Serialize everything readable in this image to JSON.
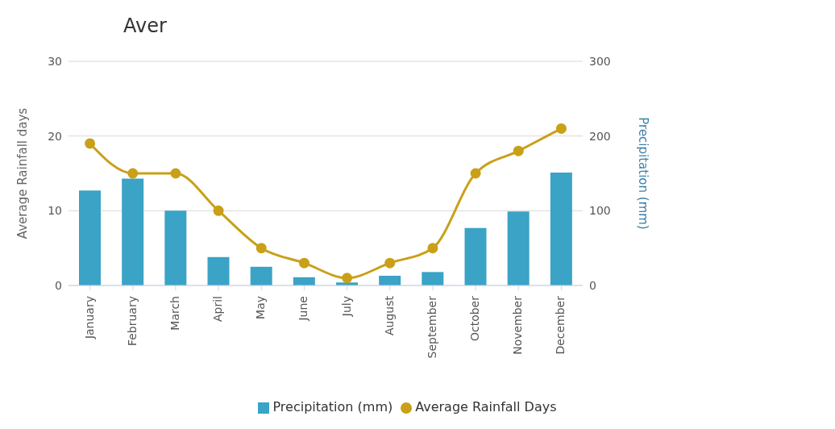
{
  "chart_data": {
    "type": "bar",
    "title": "Aver",
    "categories": [
      "January",
      "February",
      "March",
      "April",
      "May",
      "June",
      "July",
      "August",
      "September",
      "October",
      "November",
      "December"
    ],
    "series": [
      {
        "name": "Precipitation (mm)",
        "color": "#3aa3c6",
        "axis": "y2",
        "values": [
          127,
          143,
          100,
          38,
          25,
          11,
          4,
          13,
          18,
          77,
          99,
          151
        ]
      },
      {
        "name": "Average Rainfall Days",
        "type": "line",
        "color": "#c9a018",
        "values": [
          19,
          15,
          15,
          10,
          5,
          3,
          1,
          3,
          5,
          15,
          18,
          21
        ]
      }
    ],
    "ylabel": "Average Rainfall days",
    "y2label": "Precipitation (mm)",
    "ylim": [
      0,
      30
    ],
    "yticks": [
      0,
      10,
      20,
      30
    ],
    "y2lim": [
      0,
      300
    ],
    "y2ticks": [
      0,
      100,
      200,
      300
    ],
    "grid": "y",
    "legend": "bottom",
    "marker": "circle"
  }
}
